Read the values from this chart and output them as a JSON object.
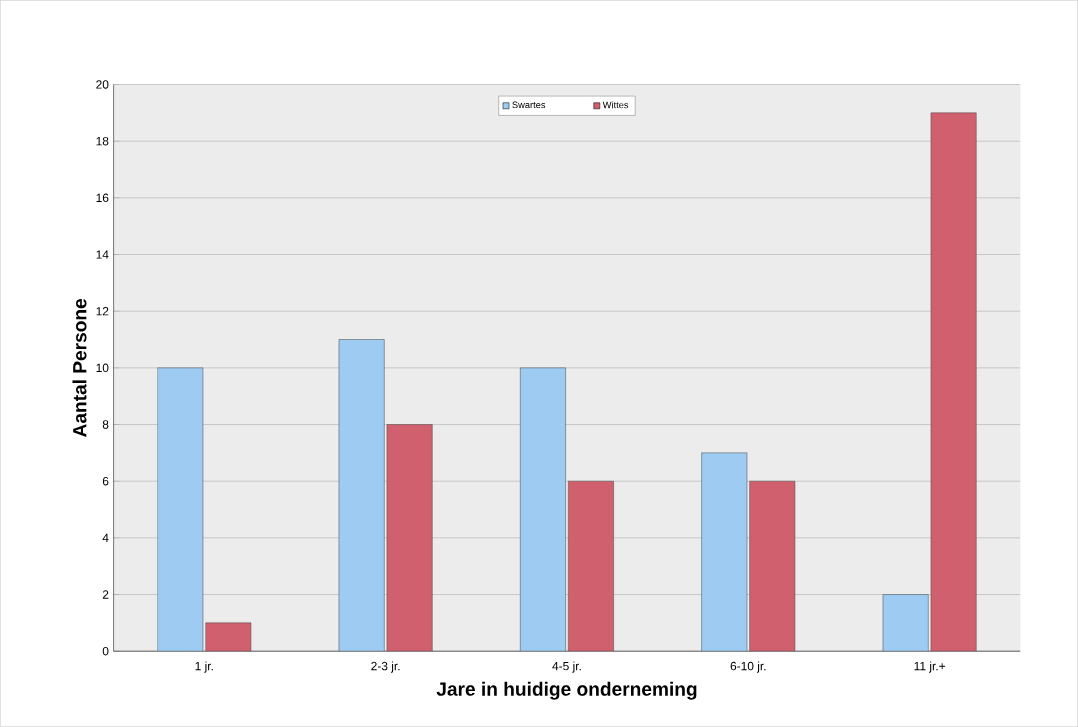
{
  "chart_data": {
    "type": "bar",
    "xlabel": "Jare in huidige onderneming",
    "ylabel": "Aantal Persone",
    "categories": [
      "1 jr.",
      "2-3 jr.",
      "4-5 jr.",
      "6-10 jr.",
      "11 jr.+"
    ],
    "series": [
      {
        "name": "Swartes",
        "color": "#9ecbf2",
        "values": [
          10,
          11,
          10,
          7,
          2
        ]
      },
      {
        "name": "Wittes",
        "color": "#d0606e",
        "values": [
          1,
          8,
          6,
          6,
          19
        ]
      }
    ],
    "ylim": [
      0,
      20
    ],
    "yticks": [
      0,
      2,
      4,
      6,
      8,
      10,
      12,
      14,
      16,
      18,
      20
    ],
    "grid": "y",
    "legend": "top"
  }
}
